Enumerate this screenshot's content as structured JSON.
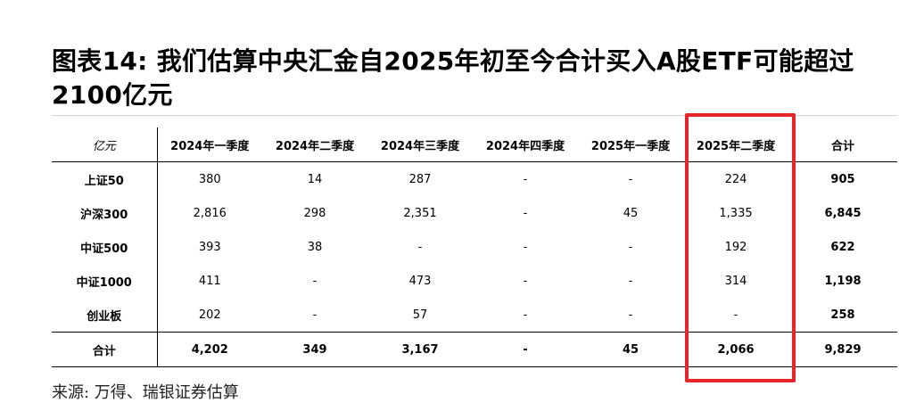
{
  "title": "图表14: 我们估算中央汇金自2025年初至今合计买入A股ETF可能超过2100亿元",
  "table": {
    "unit_label": "亿元",
    "columns": [
      "2024年一季度",
      "2024年二季度",
      "2024年三季度",
      "2024年四季度",
      "2025年一季度",
      "2025年二季度",
      "合计"
    ],
    "rows": [
      {
        "label": "上证50",
        "values": [
          "380",
          "14",
          "287",
          "-",
          "-",
          "224",
          "905"
        ]
      },
      {
        "label": "沪深300",
        "values": [
          "2,816",
          "298",
          "2,351",
          "-",
          "45",
          "1,335",
          "6,845"
        ]
      },
      {
        "label": "中证500",
        "values": [
          "393",
          "38",
          "-",
          "-",
          "-",
          "192",
          "622"
        ]
      },
      {
        "label": "中证1000",
        "values": [
          "411",
          "-",
          "473",
          "-",
          "-",
          "314",
          "1,198"
        ]
      },
      {
        "label": "创业板",
        "values": [
          "202",
          "-",
          "57",
          "-",
          "-",
          "-",
          "258"
        ]
      }
    ],
    "total_row": {
      "label": "合计",
      "values": [
        "4,202",
        "349",
        "3,167",
        "-",
        "45",
        "2,066",
        "9,829"
      ]
    }
  },
  "highlight": {
    "column": "2025年二季度",
    "color": "#e8262a"
  },
  "source": "来源: 万得、瑞银证券估算"
}
